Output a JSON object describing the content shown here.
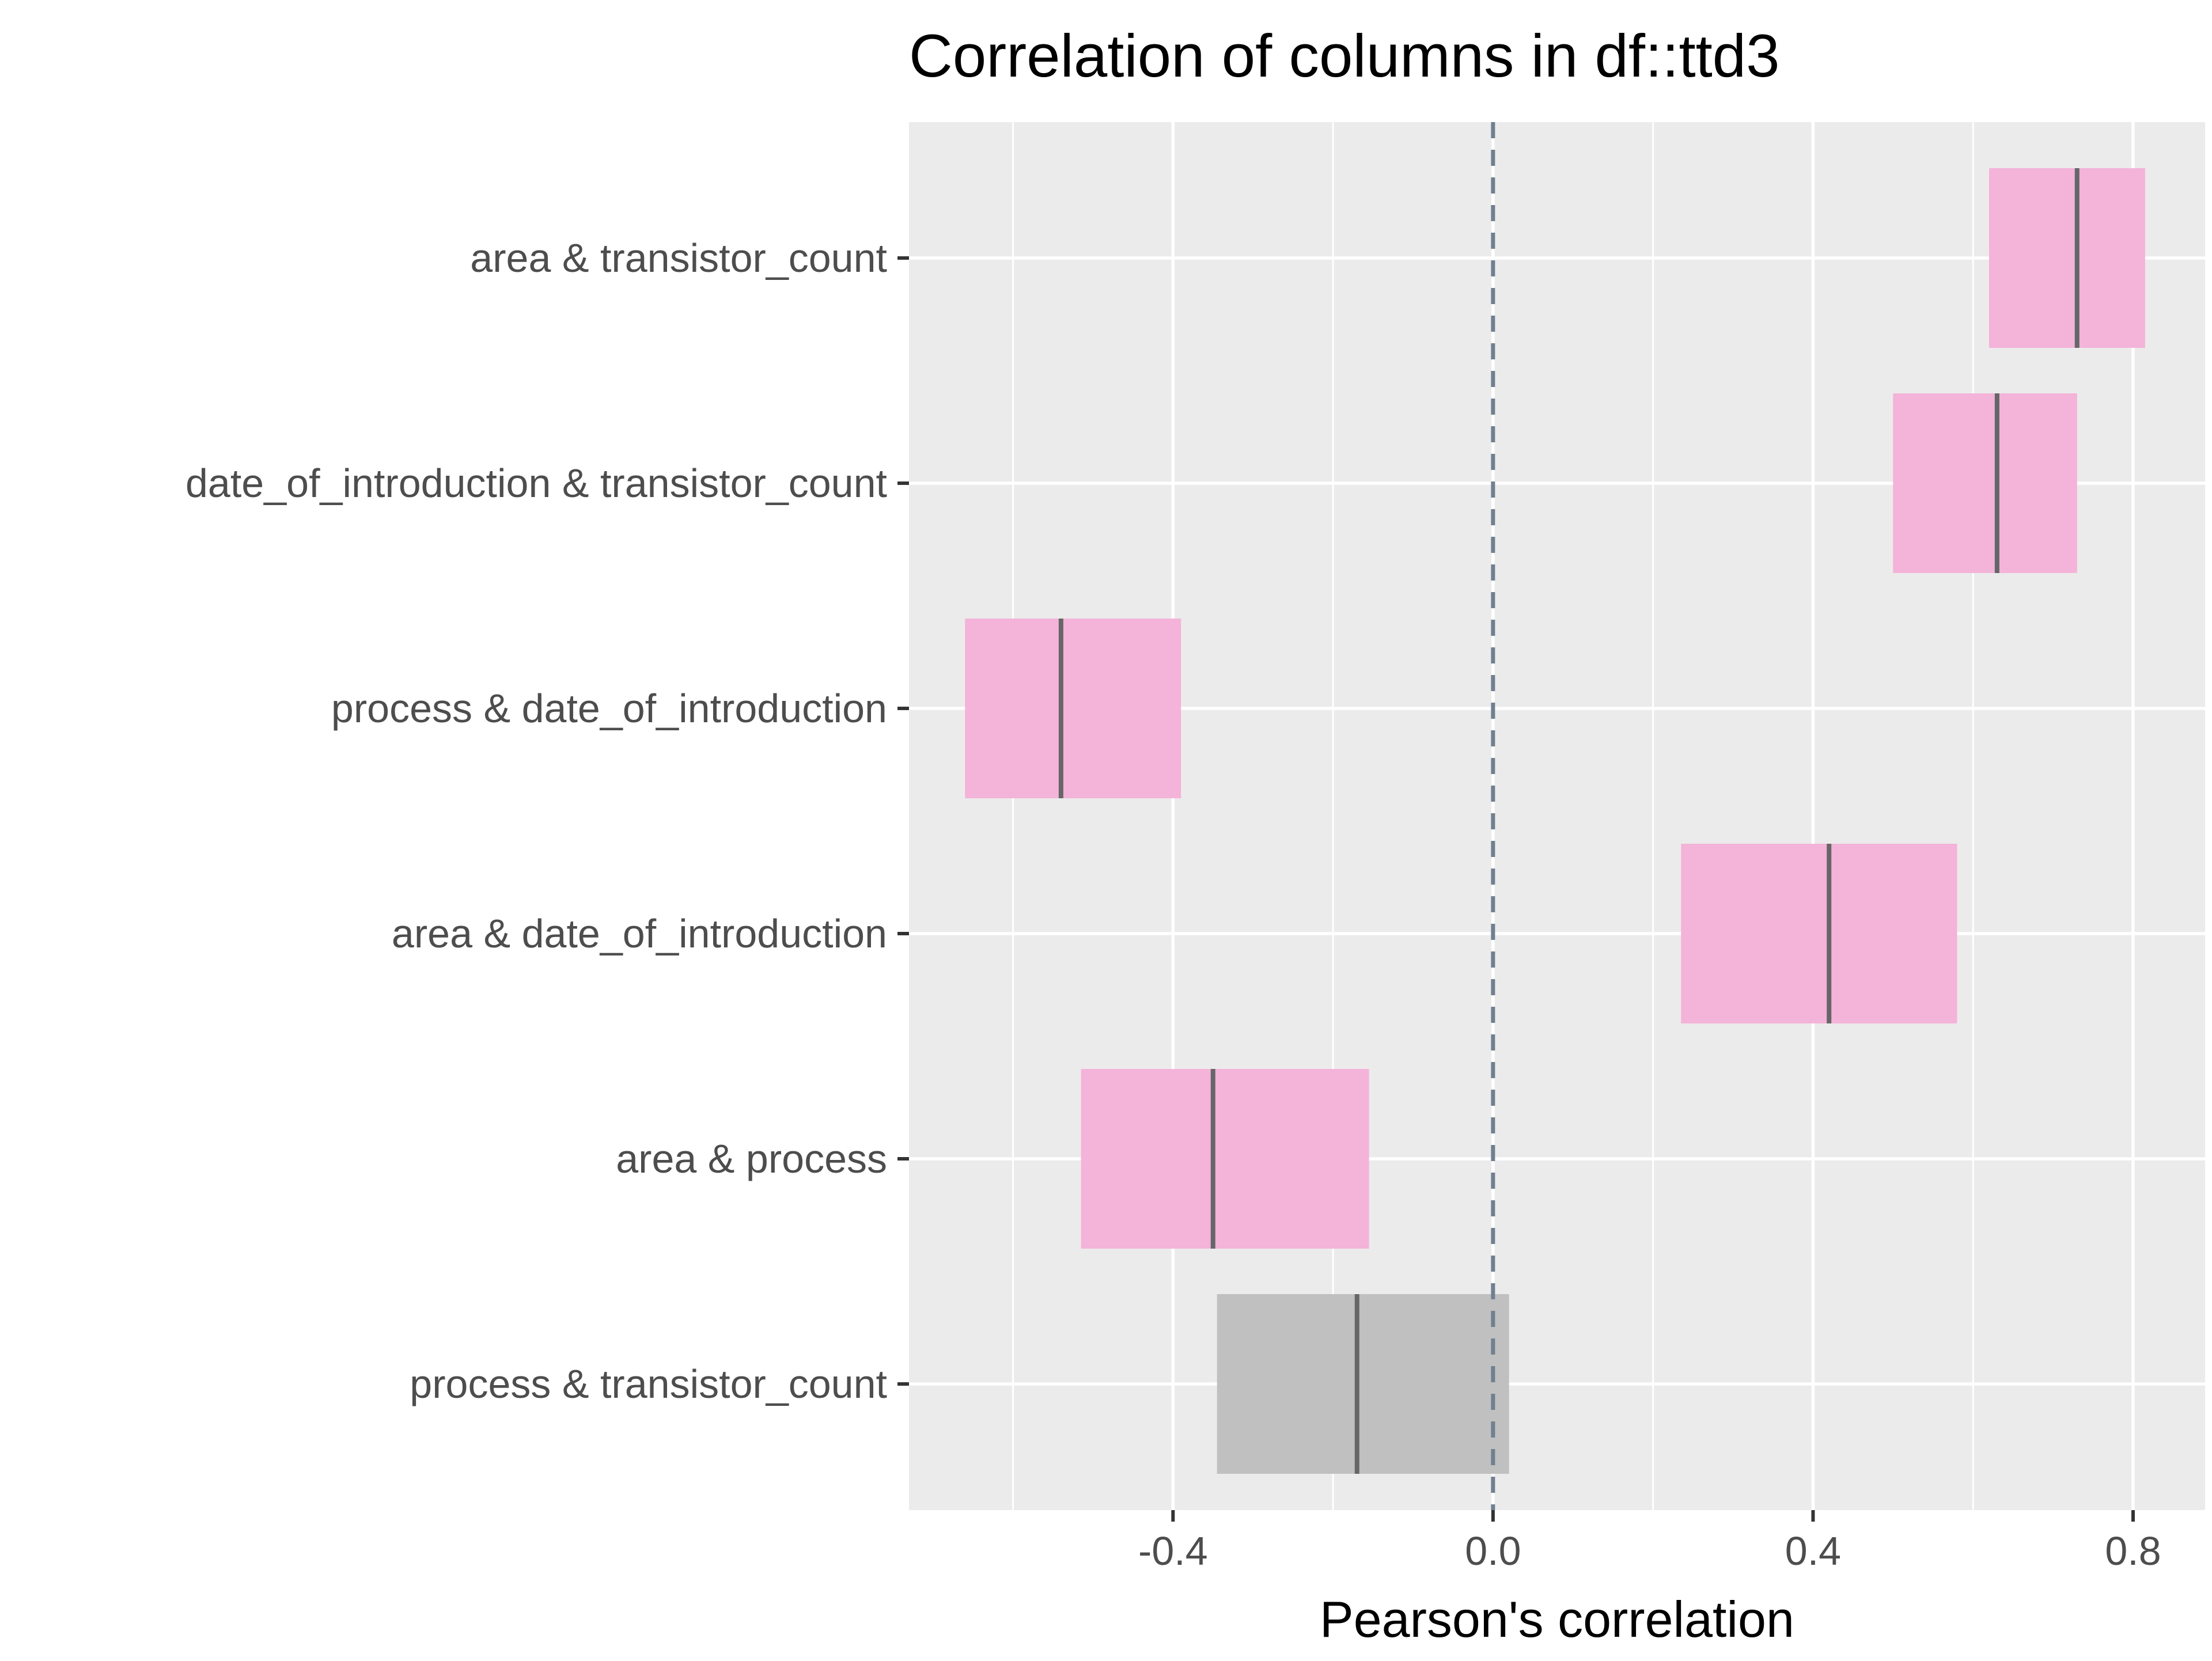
{
  "colors": {
    "panel_background": "#ebebeb",
    "grid_line": "#ffffff",
    "significant_fill": "#f4b3d9",
    "nonsignificant_fill": "#c0c0c0",
    "estimate_line": "#666666",
    "zero_line": "#708090",
    "tick_text": "#4d4d4d",
    "title_text": "#000000"
  },
  "chart_data": {
    "type": "crossbar",
    "title": "Correlation of columns in df::ttd3",
    "xlabel": "Pearson's correlation",
    "ylabel": "",
    "xlim": [
      -0.73,
      0.89
    ],
    "x_ticks": [
      -0.4,
      0.0,
      0.4,
      0.8
    ],
    "x_tick_labels": [
      "-0.4",
      "0.0",
      "0.4",
      "0.8"
    ],
    "reference_line": {
      "x": 0.0,
      "style": "dashed"
    },
    "grid": true,
    "legend": "none",
    "rows": [
      {
        "label": "area & transistor_count",
        "estimate": 0.73,
        "lower": 0.62,
        "upper": 0.815,
        "significant": true
      },
      {
        "label": "date_of_introduction & transistor_count",
        "estimate": 0.63,
        "lower": 0.5,
        "upper": 0.73,
        "significant": true
      },
      {
        "label": "process & date_of_introduction",
        "estimate": -0.54,
        "lower": -0.66,
        "upper": -0.39,
        "significant": true
      },
      {
        "label": "area & date_of_introduction",
        "estimate": 0.42,
        "lower": 0.235,
        "upper": 0.58,
        "significant": true
      },
      {
        "label": "area & process",
        "estimate": -0.35,
        "lower": -0.515,
        "upper": -0.155,
        "significant": true
      },
      {
        "label": "process & transistor_count",
        "estimate": -0.17,
        "lower": -0.345,
        "upper": 0.02,
        "significant": false
      }
    ]
  }
}
